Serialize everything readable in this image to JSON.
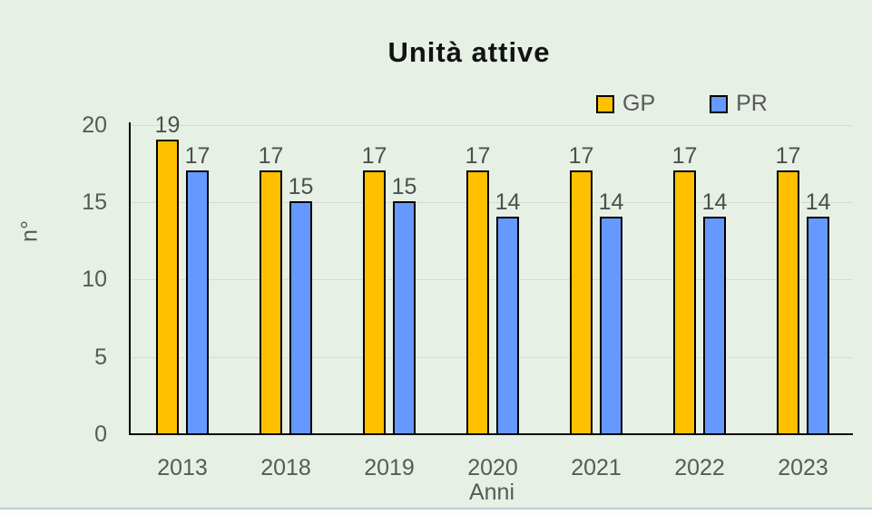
{
  "page": {
    "background_color": "#E6F0E5"
  },
  "title": "Unità attive",
  "legend": {
    "items": [
      {
        "label": "GP",
        "color": "#FFC000"
      },
      {
        "label": "PR",
        "color": "#6699FF"
      }
    ]
  },
  "axes": {
    "y_label": "n°",
    "x_label": "Anni"
  },
  "chart_data": {
    "type": "bar",
    "title": "Unità attive",
    "categories": [
      "2013",
      "2018",
      "2019",
      "2020",
      "2021",
      "2022",
      "2023"
    ],
    "series": [
      {
        "name": "GP",
        "color": "#FFC000",
        "values": [
          19,
          17,
          17,
          17,
          17,
          17,
          17
        ]
      },
      {
        "name": "PR",
        "color": "#6699FF",
        "values": [
          17,
          15,
          15,
          14,
          14,
          14,
          14
        ]
      }
    ],
    "xlabel": "Anni",
    "ylabel": "n°",
    "ylim": [
      0,
      20
    ],
    "yticks": [
      0,
      5,
      10,
      15,
      20
    ],
    "grid": true,
    "legend_position": "top-right",
    "data_labels": true,
    "bar_border_color": "#000000",
    "gridline_color": "#d6dcd4",
    "text_color": "#595959"
  }
}
